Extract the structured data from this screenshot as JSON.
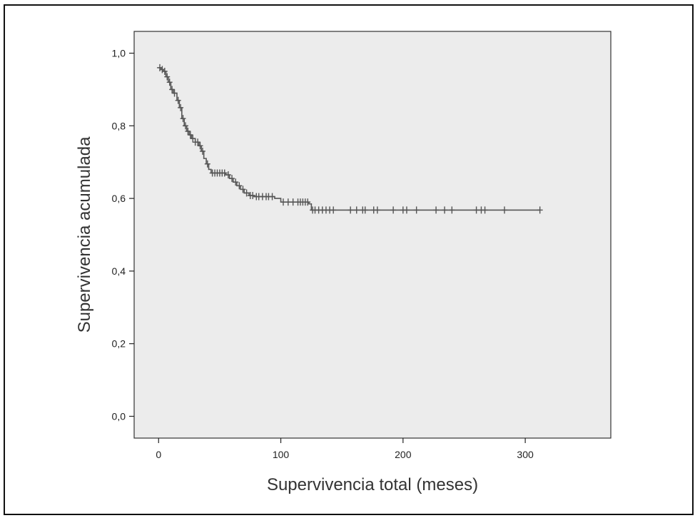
{
  "chart_data": {
    "type": "line",
    "title": "",
    "xlabel": "Supervivencia total (meses)",
    "ylabel": "Supervivencia acumulada",
    "xlim": [
      -20,
      370
    ],
    "ylim": [
      -0.06,
      1.06
    ],
    "xticks": [
      0,
      100,
      200,
      300
    ],
    "xtick_labels": [
      "0",
      "100",
      "200",
      "300"
    ],
    "yticks": [
      0.0,
      0.2,
      0.4,
      0.6,
      0.8,
      1.0
    ],
    "ytick_labels": [
      "0,0",
      "0,2",
      "0,4",
      "0,6",
      "0,8",
      "1,0"
    ],
    "grid": false,
    "legend": "none",
    "colors": {
      "plot_background": "#ececec",
      "line": "#555555",
      "frame": "#111111"
    },
    "series": [
      {
        "step_points": [
          [
            0,
            0.96
          ],
          [
            2,
            0.955
          ],
          [
            4,
            0.95
          ],
          [
            6,
            0.935
          ],
          [
            8,
            0.92
          ],
          [
            10,
            0.9
          ],
          [
            12,
            0.89
          ],
          [
            15,
            0.87
          ],
          [
            17,
            0.85
          ],
          [
            19,
            0.82
          ],
          [
            21,
            0.8
          ],
          [
            23,
            0.785
          ],
          [
            25,
            0.775
          ],
          [
            27,
            0.765
          ],
          [
            30,
            0.755
          ],
          [
            33,
            0.745
          ],
          [
            35,
            0.73
          ],
          [
            37,
            0.71
          ],
          [
            39,
            0.695
          ],
          [
            41,
            0.68
          ],
          [
            43,
            0.67
          ],
          [
            55,
            0.665
          ],
          [
            58,
            0.655
          ],
          [
            61,
            0.645
          ],
          [
            64,
            0.635
          ],
          [
            67,
            0.625
          ],
          [
            70,
            0.615
          ],
          [
            74,
            0.608
          ],
          [
            78,
            0.605
          ],
          [
            95,
            0.6
          ],
          [
            100,
            0.59
          ],
          [
            123,
            0.585
          ],
          [
            125,
            0.568
          ],
          [
            312,
            0.568
          ]
        ],
        "censored_x": [
          1,
          3,
          5,
          7,
          9,
          11,
          13,
          16,
          18,
          20,
          22,
          24,
          26,
          28,
          30,
          32,
          34,
          36,
          40,
          44,
          46,
          48,
          50,
          52,
          54,
          57,
          60,
          63,
          66,
          69,
          72,
          75,
          77,
          80,
          82,
          85,
          88,
          90,
          93,
          102,
          106,
          110,
          114,
          116,
          118,
          120,
          122,
          126,
          128,
          131,
          134,
          137,
          140,
          143,
          157,
          162,
          167,
          169,
          176,
          179,
          192,
          200,
          203,
          211,
          227,
          234,
          240,
          260,
          264,
          267,
          283,
          312
        ]
      }
    ]
  }
}
